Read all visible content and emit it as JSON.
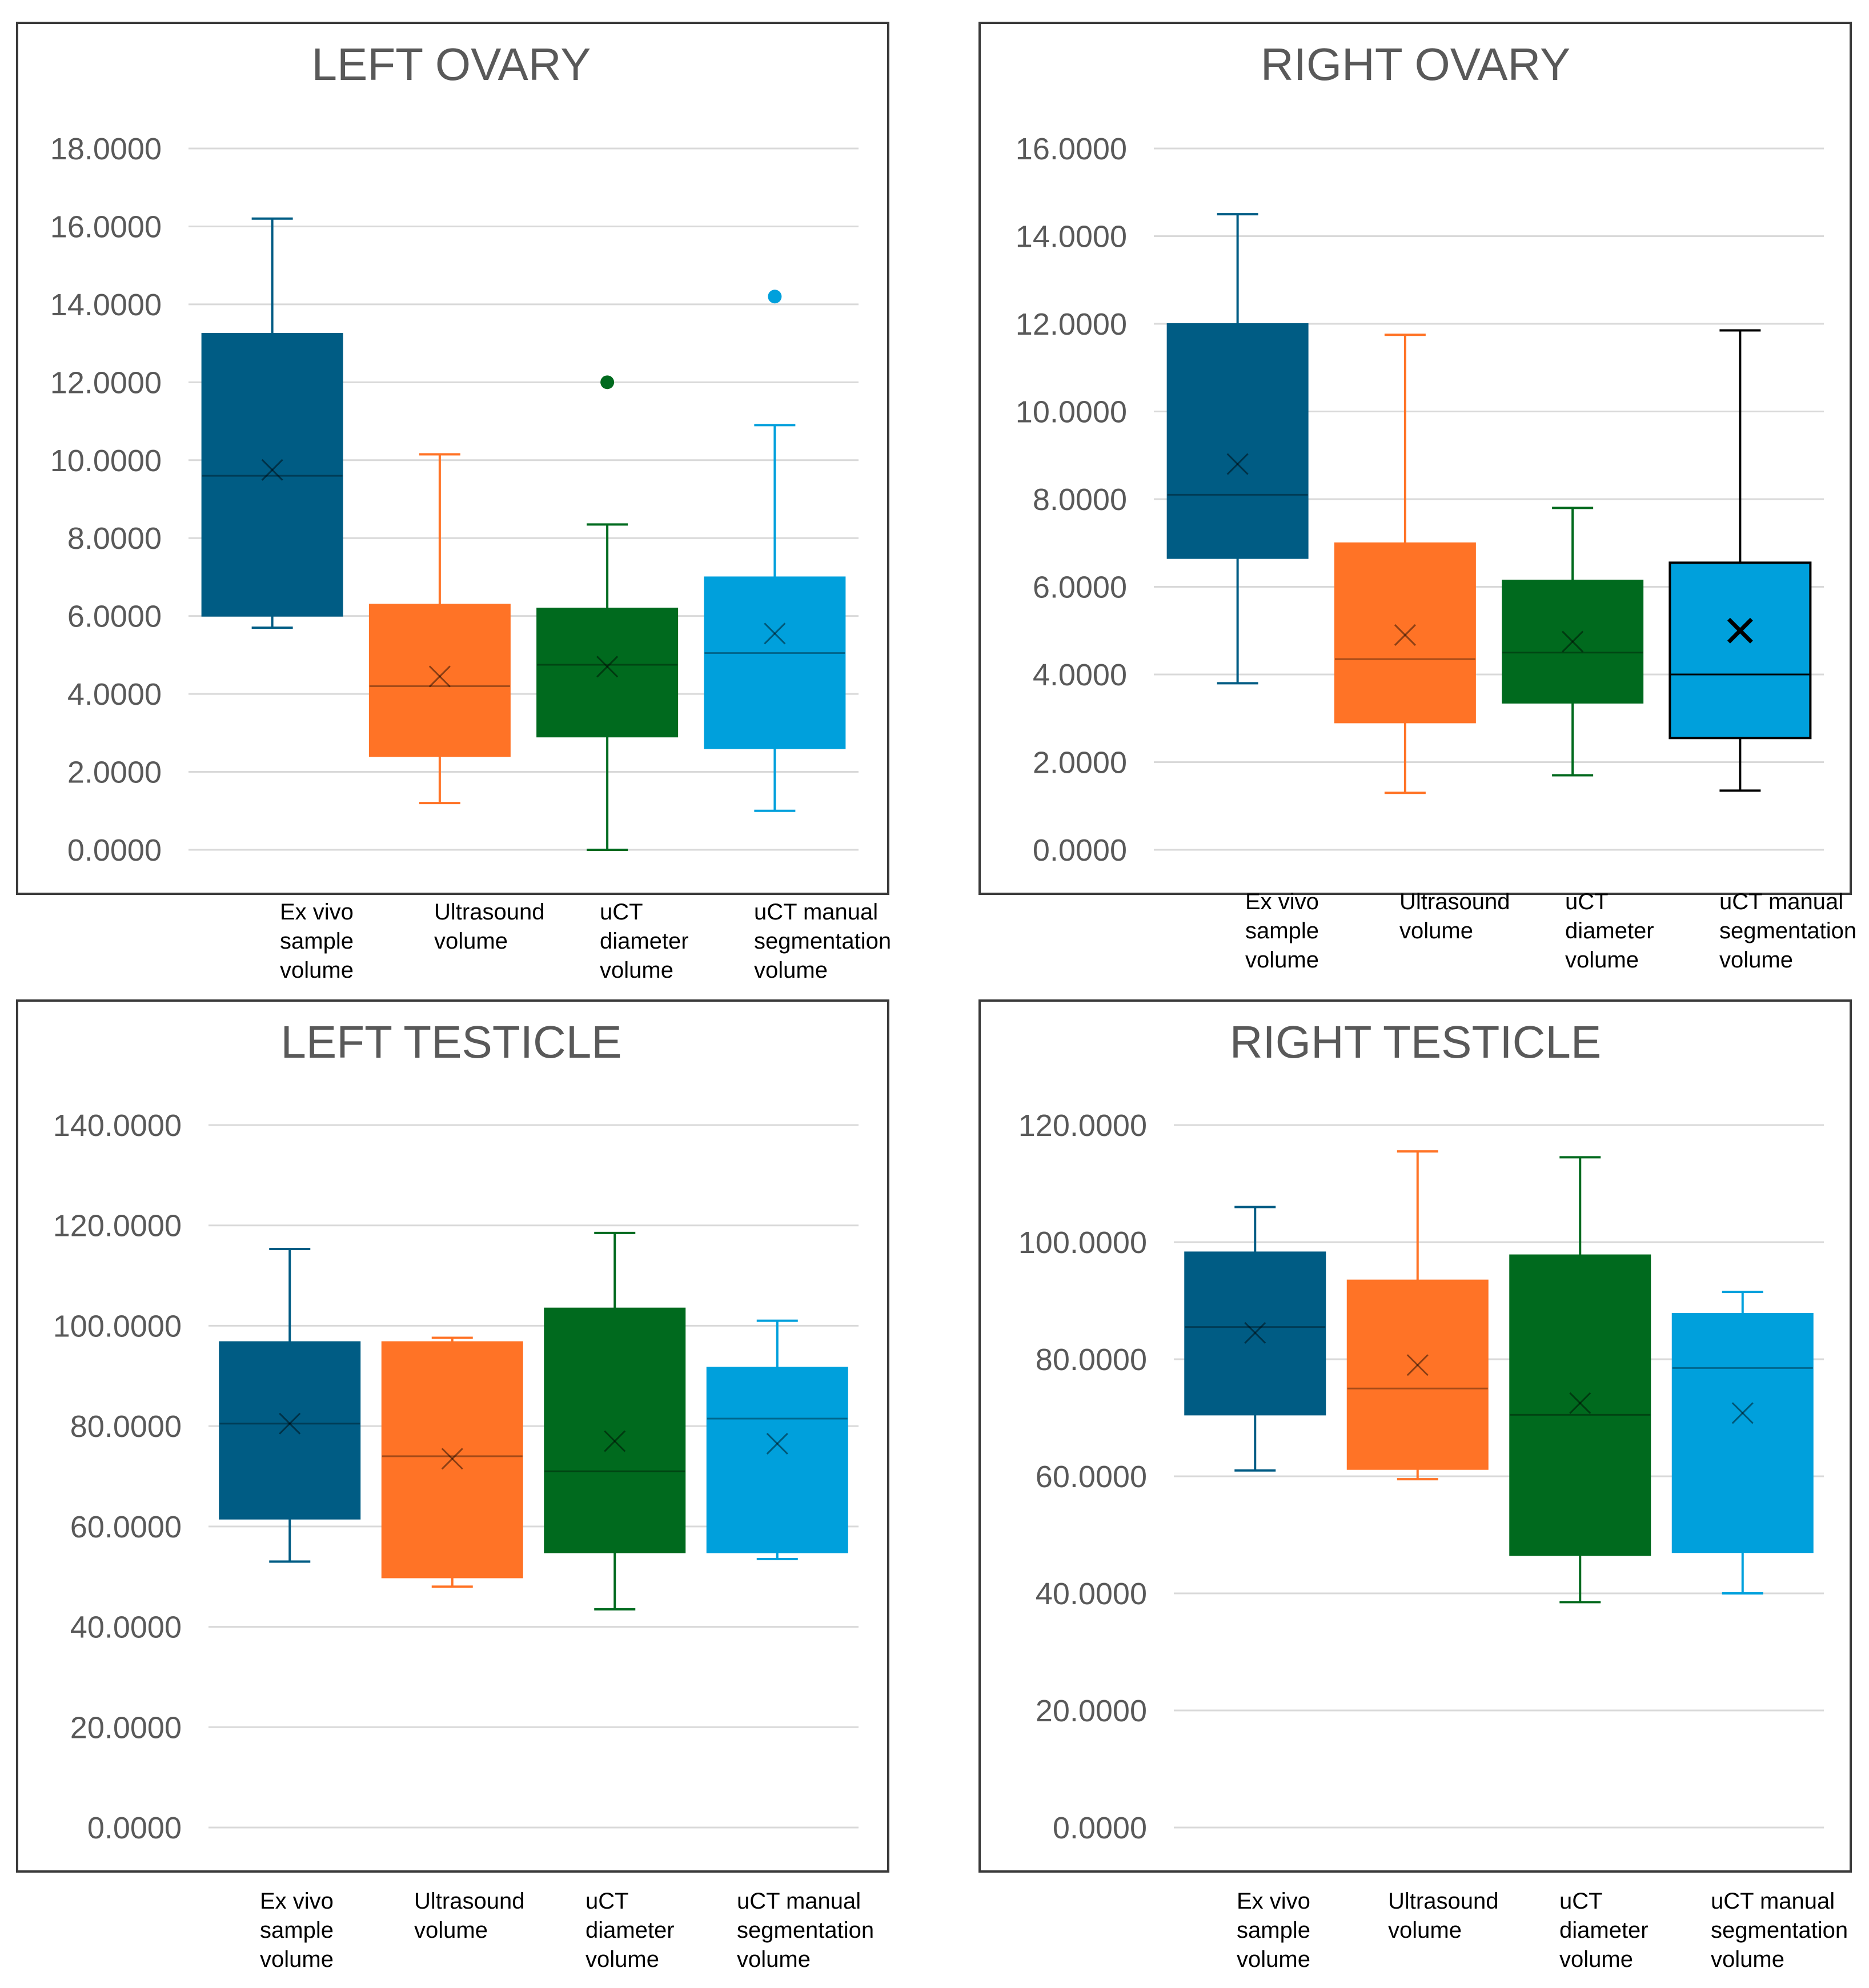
{
  "chart_data": [
    {
      "type": "box",
      "title": "LEFT OVARY",
      "categories": [
        "Ex vivo sample volume",
        "Ultrasound volume",
        "uCT diameter volume",
        "uCT manual segmentation volume"
      ],
      "y_ticks": [
        "0.0000",
        "2.0000",
        "4.0000",
        "6.0000",
        "8.0000",
        "10.0000",
        "12.0000",
        "14.0000",
        "16.0000",
        "18.0000"
      ],
      "ylim": [
        0,
        18
      ],
      "grid": true,
      "series": [
        {
          "name": "Ex vivo sample volume",
          "color": "#005c84",
          "min": 5.7,
          "q1": 6.0,
          "median": 9.6,
          "mean": 9.75,
          "q3": 13.25,
          "max": 16.2,
          "outliers": []
        },
        {
          "name": "Ultrasound volume",
          "color": "#ff7326",
          "min": 1.2,
          "q1": 2.4,
          "median": 4.2,
          "mean": 4.45,
          "q3": 6.3,
          "max": 10.15,
          "outliers": []
        },
        {
          "name": "uCT diameter volume",
          "color": "#006a1e",
          "min": 0.0,
          "q1": 2.9,
          "median": 4.75,
          "mean": 4.7,
          "q3": 6.2,
          "max": 8.35,
          "outliers": [
            12.0
          ]
        },
        {
          "name": "uCT manual segmentation volume",
          "color": "#00a0dc",
          "min": 1.0,
          "q1": 2.6,
          "median": 5.05,
          "mean": 5.55,
          "q3": 7.0,
          "max": 10.9,
          "outliers": [
            14.2
          ]
        }
      ]
    },
    {
      "type": "box",
      "title": "RIGHT OVARY",
      "categories": [
        "Ex vivo sample volume",
        "Ultrasound volume",
        "uCT diameter volume",
        "uCT manual segmentation volume"
      ],
      "y_ticks": [
        "0.0000",
        "2.0000",
        "4.0000",
        "6.0000",
        "8.0000",
        "10.0000",
        "12.0000",
        "14.0000",
        "16.0000"
      ],
      "ylim": [
        0,
        16
      ],
      "grid": true,
      "series": [
        {
          "name": "Ex vivo sample volume",
          "color": "#005c84",
          "min": 3.8,
          "q1": 6.65,
          "median": 8.1,
          "mean": 8.8,
          "q3": 12.0,
          "max": 14.5,
          "outliers": []
        },
        {
          "name": "Ultrasound volume",
          "color": "#ff7326",
          "min": 1.3,
          "q1": 2.9,
          "median": 4.35,
          "mean": 4.9,
          "q3": 7.0,
          "max": 11.75,
          "outliers": []
        },
        {
          "name": "uCT diameter volume",
          "color": "#006a1e",
          "min": 1.7,
          "q1": 3.35,
          "median": 4.5,
          "mean": 4.75,
          "q3": 6.15,
          "max": 7.8,
          "outliers": []
        },
        {
          "name": "uCT manual segmentation volume",
          "color": "#00a0dc",
          "min": 1.35,
          "q1": 2.55,
          "median": 4.0,
          "mean": 5.0,
          "q3": 6.55,
          "max": 11.85,
          "outliers": [],
          "line_color": "#000000"
        }
      ]
    },
    {
      "type": "box",
      "title": "LEFT TESTICLE",
      "categories": [
        "Ex vivo sample volume",
        "Ultrasound volume",
        "uCT diameter volume",
        "uCT manual segmentation volume"
      ],
      "y_ticks": [
        "0.0000",
        "20.0000",
        "40.0000",
        "60.0000",
        "80.0000",
        "100.0000",
        "120.0000",
        "140.0000"
      ],
      "ylim": [
        0,
        140
      ],
      "grid": true,
      "series": [
        {
          "name": "Ex vivo sample volume",
          "color": "#005c84",
          "min": 53,
          "q1": 61.5,
          "median": 80.5,
          "mean": 80.5,
          "q3": 96.8,
          "max": 115.3,
          "outliers": []
        },
        {
          "name": "Ultrasound volume",
          "color": "#ff7326",
          "min": 48,
          "q1": 49.8,
          "median": 74,
          "mean": 73.5,
          "q3": 96.8,
          "max": 97.6,
          "outliers": []
        },
        {
          "name": "uCT diameter volume",
          "color": "#006a1e",
          "min": 43.5,
          "q1": 54.8,
          "median": 71,
          "mean": 77,
          "q3": 103.5,
          "max": 118.5,
          "outliers": []
        },
        {
          "name": "uCT manual segmentation volume",
          "color": "#00a0dc",
          "min": 53.5,
          "q1": 54.8,
          "median": 81.5,
          "mean": 76.5,
          "q3": 91.7,
          "max": 101,
          "outliers": []
        }
      ]
    },
    {
      "type": "box",
      "title": "RIGHT TESTICLE",
      "categories": [
        "Ex vivo sample volume",
        "Ultrasound volume",
        "uCT diameter volume",
        "uCT manual segmentation volume"
      ],
      "y_ticks": [
        "0.0000",
        "20.0000",
        "40.0000",
        "60.0000",
        "80.0000",
        "100.0000",
        "120.0000"
      ],
      "ylim": [
        0,
        120
      ],
      "grid": true,
      "series": [
        {
          "name": "Ex vivo sample volume",
          "color": "#005c84",
          "min": 61,
          "q1": 70.5,
          "median": 85.5,
          "mean": 84.5,
          "q3": 98.3,
          "max": 106,
          "outliers": []
        },
        {
          "name": "Ultrasound volume",
          "color": "#ff7326",
          "min": 59.5,
          "q1": 61.2,
          "median": 75,
          "mean": 79,
          "q3": 93.5,
          "max": 115.5,
          "outliers": []
        },
        {
          "name": "uCT diameter volume",
          "color": "#006a1e",
          "min": 38.5,
          "q1": 46.5,
          "median": 70.5,
          "mean": 72.5,
          "q3": 97.8,
          "max": 114.5,
          "outliers": []
        },
        {
          "name": "uCT manual segmentation volume",
          "color": "#00a0dc",
          "min": 40,
          "q1": 47,
          "median": 78.5,
          "mean": 70.8,
          "q3": 87.8,
          "max": 91.5,
          "outliers": []
        }
      ]
    }
  ]
}
